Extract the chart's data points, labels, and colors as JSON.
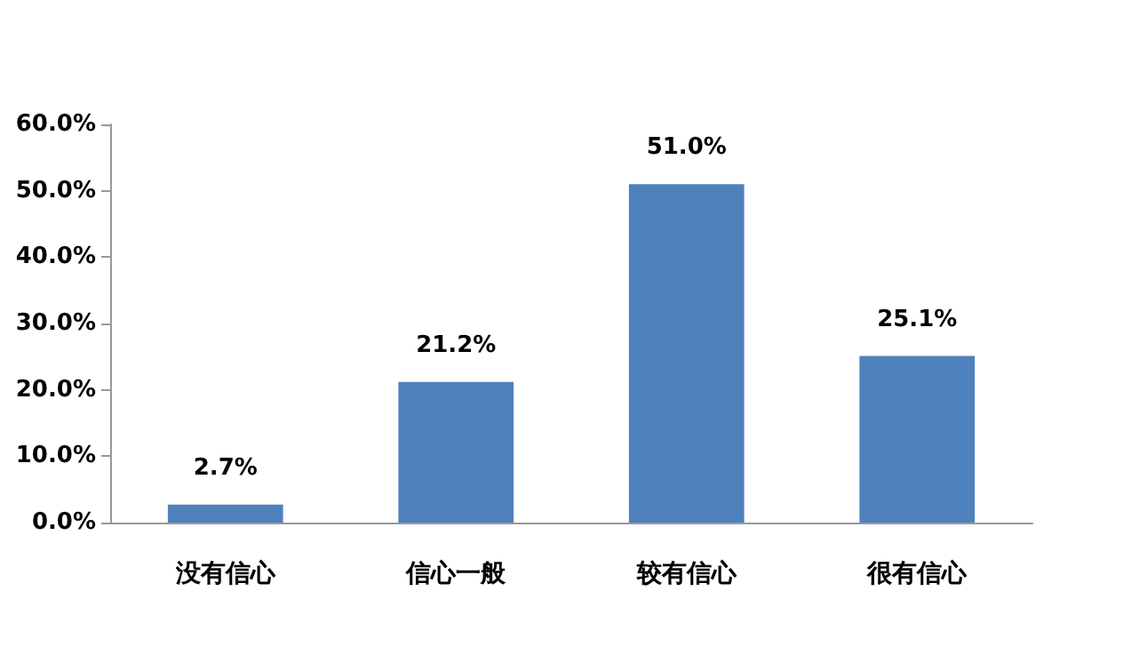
{
  "chart_data": {
    "type": "bar",
    "categories": [
      "没有信心",
      "信心一般",
      "较有信心",
      "很有信心"
    ],
    "values": [
      2.7,
      21.2,
      51.0,
      25.1
    ],
    "value_labels": [
      "2.7%",
      "21.2%",
      "51.0%",
      "25.1%"
    ],
    "color": "#4f81bd",
    "ylim": [
      0,
      60
    ],
    "yticks": [
      {
        "value": 0,
        "label": "0.0%"
      },
      {
        "value": 10,
        "label": "10.0%"
      },
      {
        "value": 20,
        "label": "20.0%"
      },
      {
        "value": 30,
        "label": "30.0%"
      },
      {
        "value": 40,
        "label": "40.0%"
      },
      {
        "value": 50,
        "label": "50.0%"
      },
      {
        "value": 60,
        "label": "60.0%"
      }
    ],
    "grid": false
  }
}
